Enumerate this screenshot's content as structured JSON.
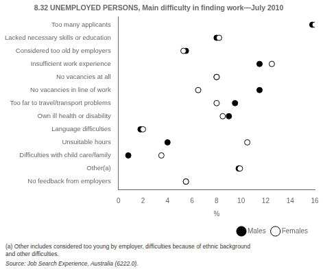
{
  "chart_data": {
    "type": "dot",
    "title": "8.32 UNEMPLOYED PERSONS, Main difficulty in finding work—July 2010",
    "categories": [
      "Too many applicants",
      "Lacked necessary skills or education",
      "Considered too old by employers",
      "Insufficient work experience",
      "No vacancies at all",
      "No vacancies in line of work",
      "Too far to travel/transport problems",
      "Own ill health or disability",
      "Language difficulties",
      "Unsuitable hours",
      "Difficulties with child care/family",
      "Other(a)",
      "No feedback from employers"
    ],
    "series": [
      {
        "name": "Males",
        "color": "#000000",
        "values": [
          15.8,
          8.0,
          5.5,
          11.5,
          8.0,
          11.5,
          9.5,
          9.0,
          1.8,
          4.0,
          0.8,
          9.8,
          5.5
        ]
      },
      {
        "name": "Females",
        "color": "#ffffff",
        "values": [
          16.0,
          8.2,
          5.3,
          12.5,
          8.0,
          6.5,
          8.0,
          8.5,
          2.0,
          10.5,
          3.5,
          9.9,
          5.5
        ]
      }
    ],
    "orientation": "horizontal",
    "xlabel": "%",
    "xlim": [
      0,
      16
    ],
    "xticks": [
      0,
      2,
      4,
      6,
      8,
      10,
      12,
      14,
      16
    ],
    "grid": false,
    "legend": "lower right",
    "annotations": [
      "(a) Other includes considered too young by employer, difficulties because of ethnic background\n and other difficulties.",
      "Source: Job Search Experience, Australia (6222.0)."
    ]
  }
}
